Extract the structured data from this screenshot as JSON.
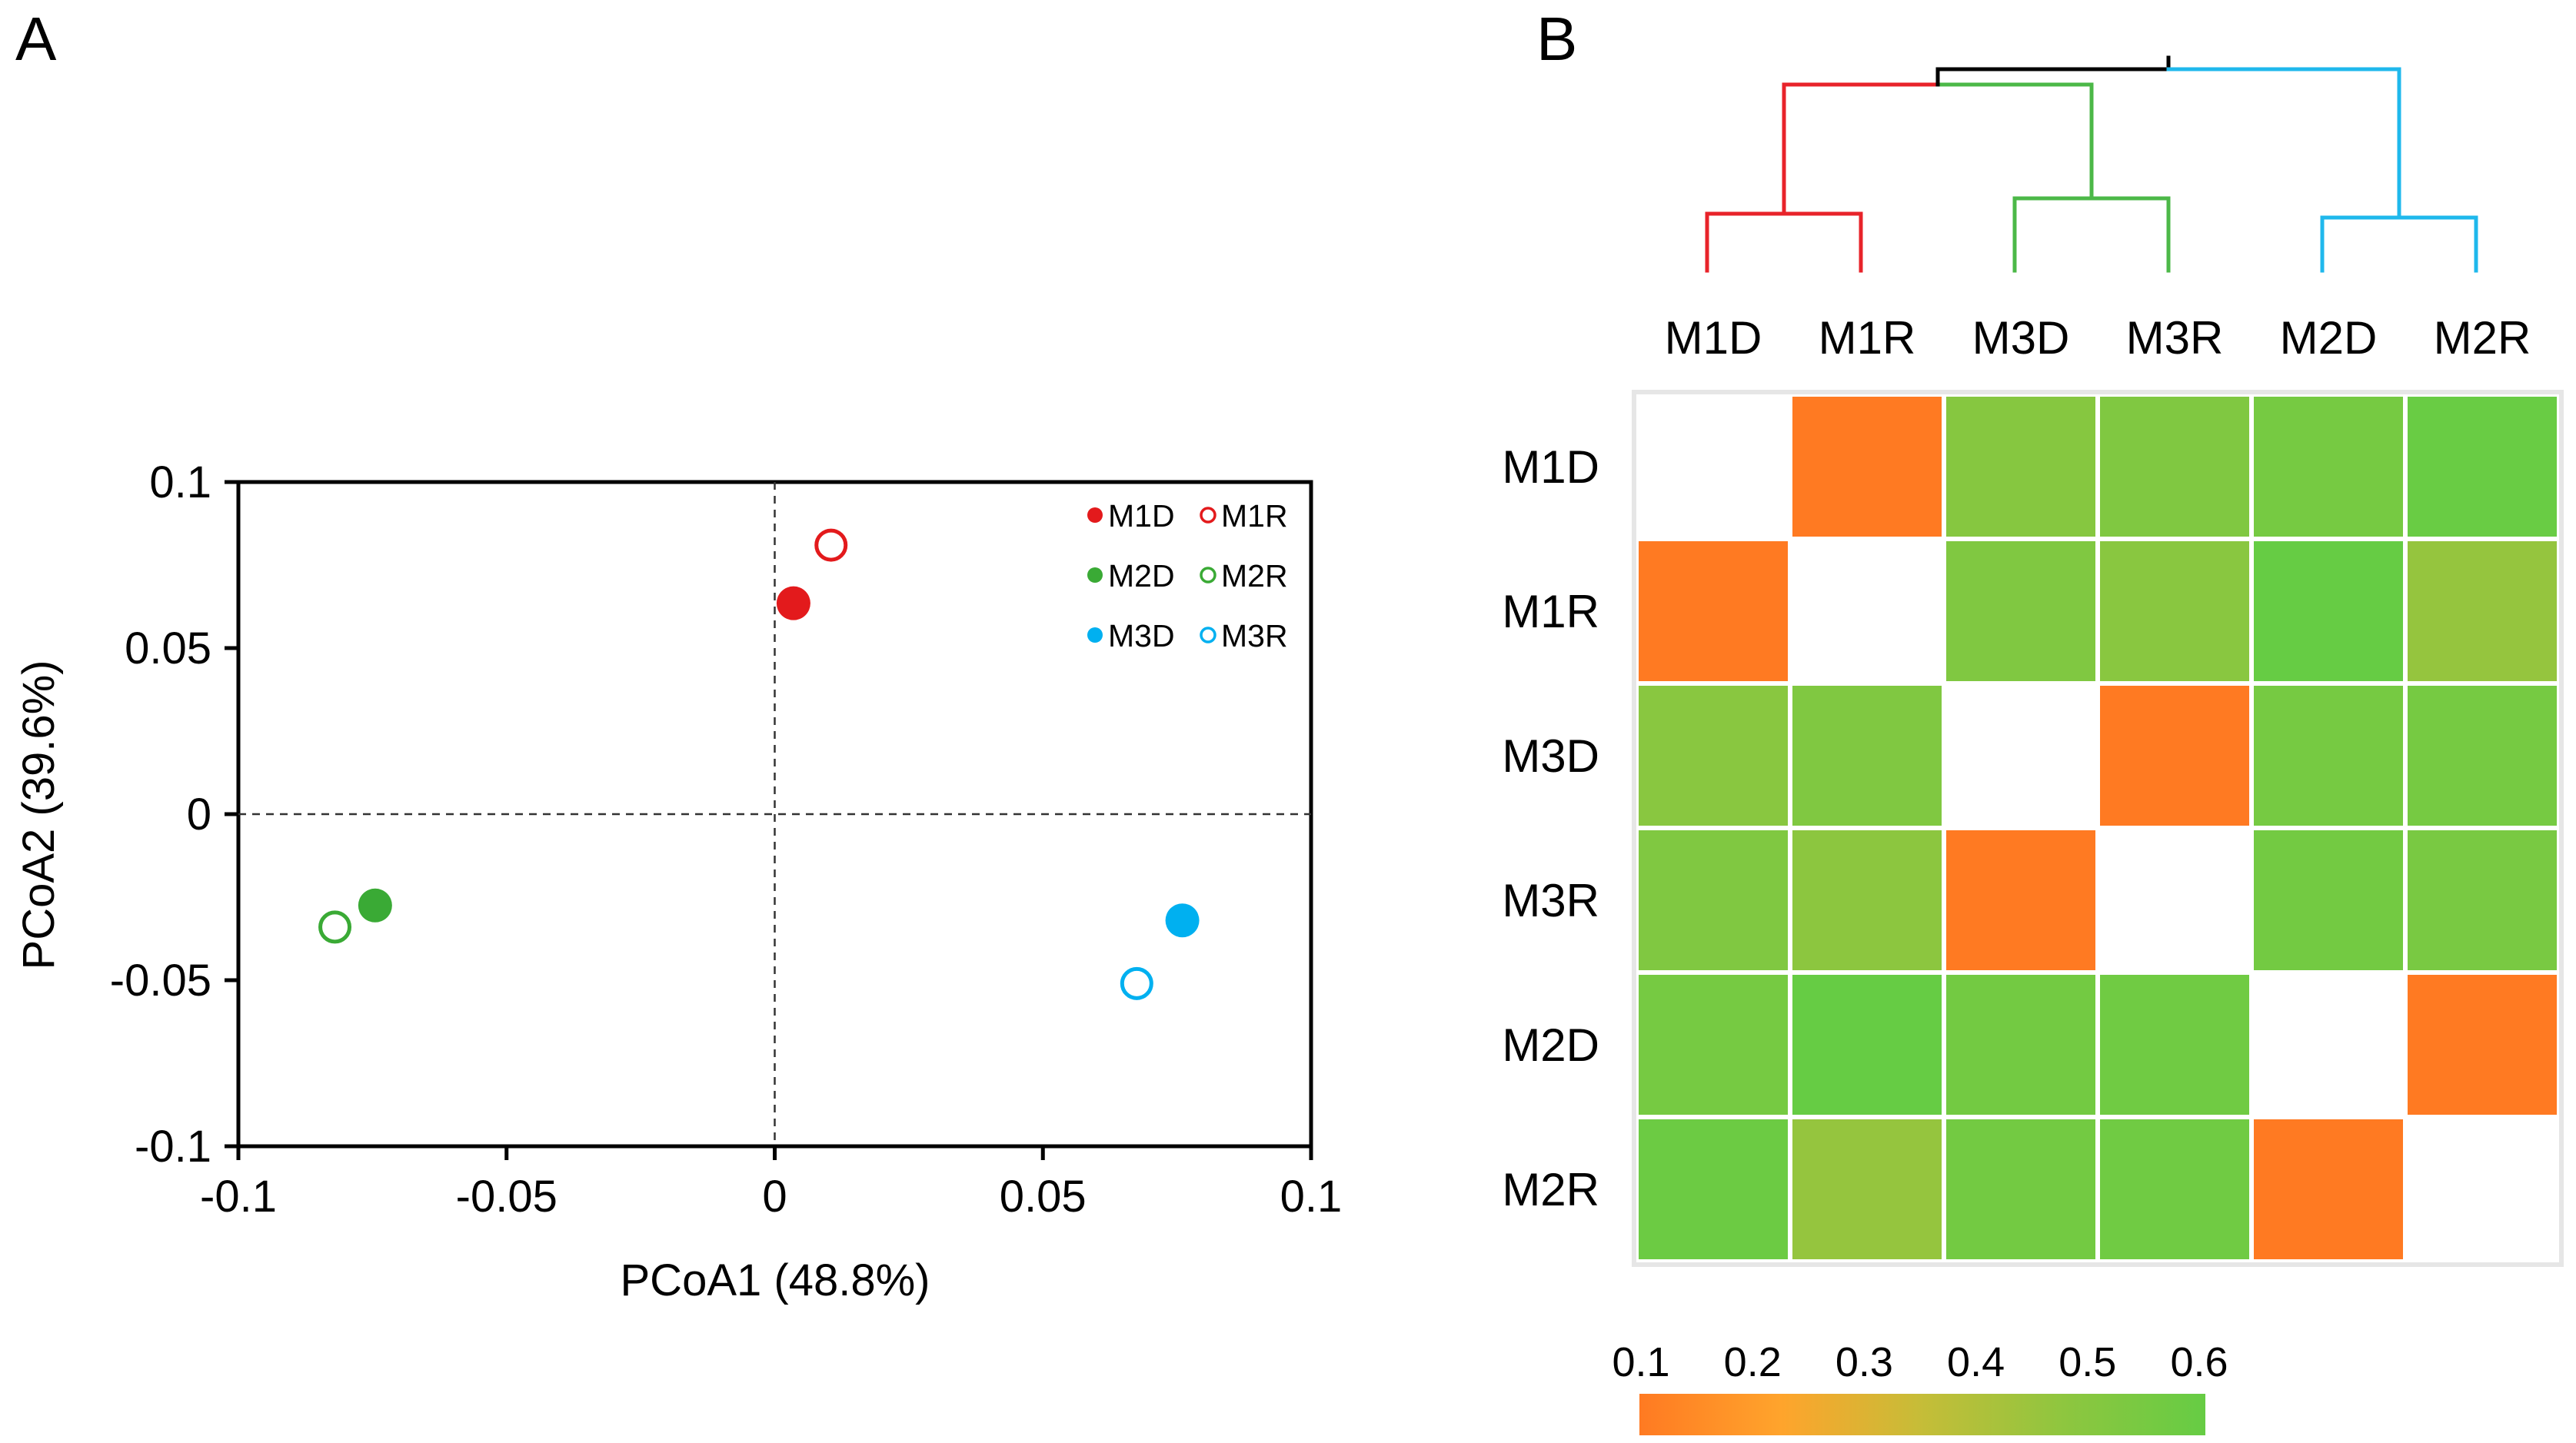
{
  "panel_labels": {
    "a": "A",
    "b": "B"
  },
  "chart_data": [
    {
      "type": "scatter",
      "panel": "A",
      "title": "",
      "xlabel": "PCoA1 (48.8%)",
      "ylabel": "PCoA2 (39.6%)",
      "xlim": [
        -0.1,
        0.1
      ],
      "ylim": [
        -0.1,
        0.1
      ],
      "xticks": [
        -0.1,
        -0.05,
        0,
        0.05,
        0.1
      ],
      "yticks": [
        -0.1,
        -0.05,
        0,
        0.05,
        0.1
      ],
      "xtick_labels": [
        "-0.1",
        "-0.05",
        "0",
        "0.05",
        "0.1"
      ],
      "ytick_labels": [
        "-0.1",
        "-0.05",
        "0",
        "0.05",
        "0.1"
      ],
      "reference_lines": {
        "x": 0,
        "y": 0,
        "style": "dashed"
      },
      "legend_position": "top-right",
      "series": [
        {
          "name": "M1D",
          "x": 0.0035,
          "y": 0.0635,
          "color": "#e31a1c",
          "filled": true
        },
        {
          "name": "M1R",
          "x": 0.0105,
          "y": 0.081,
          "color": "#e31a1c",
          "filled": false
        },
        {
          "name": "M2D",
          "x": -0.0745,
          "y": -0.0275,
          "color": "#3aaa35",
          "filled": true
        },
        {
          "name": "M2R",
          "x": -0.082,
          "y": -0.034,
          "color": "#3aaa35",
          "filled": false
        },
        {
          "name": "M3D",
          "x": 0.076,
          "y": -0.032,
          "color": "#00b0f0",
          "filled": true
        },
        {
          "name": "M3R",
          "x": 0.0675,
          "y": -0.051,
          "color": "#00b0f0",
          "filled": false
        }
      ],
      "legend_rows": [
        [
          "M1D",
          "M1R"
        ],
        [
          "M2D",
          "M2R"
        ],
        [
          "M3D",
          "M3R"
        ]
      ]
    },
    {
      "type": "heatmap",
      "panel": "B",
      "title": "",
      "row_labels": [
        "M1D",
        "M1R",
        "M3D",
        "M3R",
        "M2D",
        "M2R"
      ],
      "column_labels": [
        "M1D",
        "M1R",
        "M3D",
        "M3R",
        "M2D",
        "M2R"
      ],
      "values": [
        [
          null,
          0.1,
          0.5,
          0.52,
          0.55,
          0.59
        ],
        [
          0.1,
          null,
          0.52,
          0.49,
          0.6,
          0.46
        ],
        [
          0.49,
          0.52,
          null,
          0.1,
          0.55,
          0.55
        ],
        [
          0.52,
          0.48,
          0.1,
          null,
          0.56,
          0.54
        ],
        [
          0.55,
          0.6,
          0.56,
          0.57,
          null,
          0.1
        ],
        [
          0.58,
          0.46,
          0.56,
          0.57,
          0.1,
          null
        ]
      ],
      "colorbar": {
        "min": 0.1,
        "max": 0.6,
        "ticks": [
          "0.1",
          "0.2",
          "0.3",
          "0.4",
          "0.5",
          "0.6"
        ],
        "colors": [
          "#ff7a22",
          "#ffa42c",
          "#c5bd38",
          "#8ec63f",
          "#66cc44"
        ]
      },
      "dendrogram": {
        "leaf_order": [
          "M1D",
          "M1R",
          "M3D",
          "M3R",
          "M2D",
          "M2R"
        ],
        "clusters": [
          {
            "leaves": [
              "M1D",
              "M1R"
            ],
            "color": "#e8232a"
          },
          {
            "leaves": [
              "M3D",
              "M3R"
            ],
            "color": "#4cb848"
          },
          {
            "leaves": [
              "M2D",
              "M2R"
            ],
            "color": "#1fb8ec"
          }
        ],
        "root_color": "#000000"
      }
    }
  ]
}
